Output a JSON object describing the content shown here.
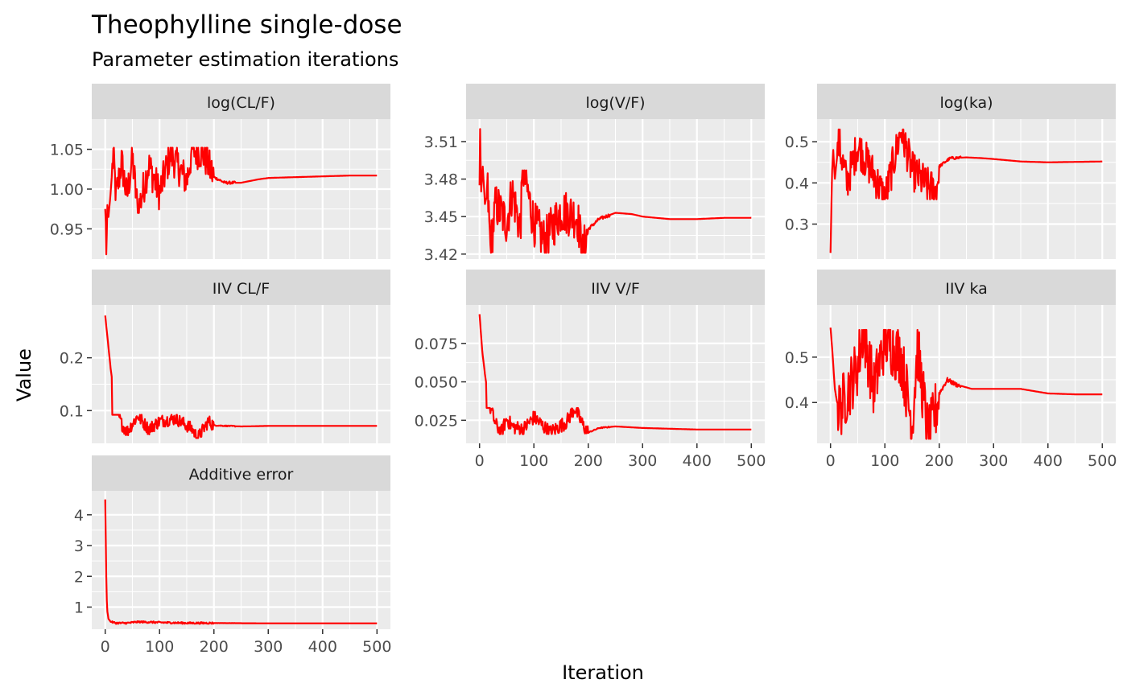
{
  "title": "Theophylline single-dose",
  "subtitle": "Parameter estimation iterations",
  "xlabel": "Iteration",
  "ylabel": "Value",
  "colors": {
    "line": "#ff0000",
    "panel": "#ebebeb",
    "strip": "#d9d9d9",
    "grid": "#ffffff",
    "tick_text": "#4d4d4d",
    "text": "#000000",
    "strip_text": "#1a1a1a"
  },
  "chart_data": {
    "type": "line",
    "layout": "facet-wrap 3 columns, free y scales",
    "xlim": [
      0,
      500
    ],
    "x_ticks": [
      0,
      100,
      200,
      300,
      400,
      500
    ],
    "grid": true,
    "legend": "none",
    "panels": [
      {
        "name": "log(CL/F)",
        "y_ticks": [
          "0.95",
          "1.00",
          "1.05"
        ],
        "ylim": [
          0.912,
          1.088
        ],
        "start": 0.975,
        "burn_in": {
          "end_iter": 200,
          "low": 0.97,
          "high": 1.052,
          "center": 1.012
        },
        "points": [
          [
            0,
            0.975
          ],
          [
            1,
            0.958
          ],
          [
            2,
            0.918
          ],
          [
            3,
            0.945
          ],
          [
            4,
            0.98
          ],
          [
            6,
            0.965
          ],
          [
            10,
            0.995
          ],
          [
            15,
            1.045
          ],
          [
            20,
            0.99
          ],
          [
            30,
            1.035
          ],
          [
            40,
            0.99
          ],
          [
            50,
            1.04
          ],
          [
            60,
            0.97
          ],
          [
            80,
            1.03
          ],
          [
            100,
            0.995
          ],
          [
            120,
            1.045
          ],
          [
            150,
            1.01
          ],
          [
            160,
            1.05
          ],
          [
            180,
            1.045
          ],
          [
            200,
            1.015
          ],
          [
            220,
            1.008
          ],
          [
            250,
            1.008
          ],
          [
            280,
            1.012
          ],
          [
            300,
            1.014
          ],
          [
            350,
            1.015
          ],
          [
            400,
            1.016
          ],
          [
            450,
            1.017
          ],
          [
            500,
            1.017
          ]
        ]
      },
      {
        "name": "log(V/F)",
        "y_ticks": [
          "3.42",
          "3.45",
          "3.48",
          "3.51"
        ],
        "ylim": [
          3.416,
          3.528
        ],
        "start": 3.475,
        "burn_in": {
          "end_iter": 200,
          "low": 3.421,
          "high": 3.487,
          "center": 3.452
        },
        "points": [
          [
            0,
            3.475
          ],
          [
            1,
            3.52
          ],
          [
            3,
            3.47
          ],
          [
            6,
            3.49
          ],
          [
            10,
            3.46
          ],
          [
            15,
            3.47
          ],
          [
            20,
            3.425
          ],
          [
            30,
            3.46
          ],
          [
            50,
            3.445
          ],
          [
            60,
            3.47
          ],
          [
            75,
            3.44
          ],
          [
            80,
            3.488
          ],
          [
            100,
            3.445
          ],
          [
            120,
            3.43
          ],
          [
            150,
            3.455
          ],
          [
            180,
            3.45
          ],
          [
            190,
            3.42
          ],
          [
            200,
            3.44
          ],
          [
            220,
            3.448
          ],
          [
            250,
            3.453
          ],
          [
            280,
            3.452
          ],
          [
            300,
            3.45
          ],
          [
            350,
            3.448
          ],
          [
            400,
            3.448
          ],
          [
            450,
            3.449
          ],
          [
            500,
            3.449
          ]
        ]
      },
      {
        "name": "log(ka)",
        "y_ticks": [
          "0.3",
          "0.4",
          "0.5"
        ],
        "ylim": [
          0.215,
          0.555
        ],
        "start": 0.23,
        "burn_in": {
          "end_iter": 200,
          "low": 0.36,
          "high": 0.53,
          "center": 0.448
        },
        "points": [
          [
            0,
            0.23
          ],
          [
            1,
            0.3
          ],
          [
            3,
            0.43
          ],
          [
            5,
            0.48
          ],
          [
            8,
            0.41
          ],
          [
            15,
            0.5
          ],
          [
            30,
            0.4
          ],
          [
            50,
            0.49
          ],
          [
            80,
            0.42
          ],
          [
            100,
            0.36
          ],
          [
            130,
            0.53
          ],
          [
            150,
            0.43
          ],
          [
            180,
            0.39
          ],
          [
            195,
            0.38
          ],
          [
            200,
            0.44
          ],
          [
            220,
            0.46
          ],
          [
            250,
            0.462
          ],
          [
            280,
            0.46
          ],
          [
            300,
            0.458
          ],
          [
            350,
            0.452
          ],
          [
            400,
            0.45
          ],
          [
            450,
            0.451
          ],
          [
            500,
            0.452
          ]
        ]
      },
      {
        "name": "IIV CL/F",
        "y_ticks": [
          "0.1",
          "0.2"
        ],
        "ylim": [
          0.038,
          0.3
        ],
        "start": 0.28,
        "burn_in": {
          "end_iter": 200,
          "low": 0.048,
          "high": 0.092,
          "center": 0.072
        },
        "points": [
          [
            0,
            0.28
          ],
          [
            5,
            0.23
          ],
          [
            10,
            0.18
          ],
          [
            15,
            0.14
          ],
          [
            20,
            0.11
          ],
          [
            25,
            0.09
          ],
          [
            30,
            0.075
          ],
          [
            40,
            0.06
          ],
          [
            50,
            0.075
          ],
          [
            60,
            0.09
          ],
          [
            80,
            0.065
          ],
          [
            100,
            0.08
          ],
          [
            130,
            0.085
          ],
          [
            160,
            0.065
          ],
          [
            170,
            0.048
          ],
          [
            190,
            0.08
          ],
          [
            200,
            0.072
          ],
          [
            250,
            0.07
          ],
          [
            300,
            0.071
          ],
          [
            400,
            0.071
          ],
          [
            500,
            0.071
          ]
        ]
      },
      {
        "name": "IIV V/F",
        "y_ticks": [
          "0.025",
          "0.050",
          "0.075"
        ],
        "ylim": [
          0.01,
          0.1
        ],
        "start": 0.094,
        "burn_in": {
          "end_iter": 200,
          "low": 0.016,
          "high": 0.033,
          "center": 0.022
        },
        "points": [
          [
            0,
            0.094
          ],
          [
            5,
            0.07
          ],
          [
            10,
            0.055
          ],
          [
            15,
            0.042
          ],
          [
            20,
            0.033
          ],
          [
            30,
            0.022
          ],
          [
            40,
            0.017
          ],
          [
            50,
            0.026
          ],
          [
            60,
            0.021
          ],
          [
            80,
            0.019
          ],
          [
            100,
            0.027
          ],
          [
            130,
            0.017
          ],
          [
            160,
            0.024
          ],
          [
            175,
            0.033
          ],
          [
            190,
            0.022
          ],
          [
            200,
            0.017
          ],
          [
            220,
            0.02
          ],
          [
            250,
            0.021
          ],
          [
            300,
            0.02
          ],
          [
            400,
            0.019
          ],
          [
            500,
            0.019
          ]
        ]
      },
      {
        "name": "IIV ka",
        "y_ticks": [
          "0.4",
          "0.5"
        ],
        "ylim": [
          0.31,
          0.615
        ],
        "start": 0.565,
        "burn_in": {
          "end_iter": 200,
          "low": 0.32,
          "high": 0.56,
          "center": 0.43
        },
        "points": [
          [
            0,
            0.565
          ],
          [
            3,
            0.52
          ],
          [
            8,
            0.43
          ],
          [
            15,
            0.38
          ],
          [
            30,
            0.42
          ],
          [
            50,
            0.48
          ],
          [
            60,
            0.56
          ],
          [
            80,
            0.43
          ],
          [
            100,
            0.54
          ],
          [
            130,
            0.5
          ],
          [
            150,
            0.35
          ],
          [
            160,
            0.52
          ],
          [
            180,
            0.32
          ],
          [
            195,
            0.39
          ],
          [
            200,
            0.42
          ],
          [
            215,
            0.45
          ],
          [
            230,
            0.44
          ],
          [
            260,
            0.43
          ],
          [
            300,
            0.43
          ],
          [
            350,
            0.43
          ],
          [
            400,
            0.42
          ],
          [
            450,
            0.418
          ],
          [
            500,
            0.418
          ]
        ]
      },
      {
        "name": "Additive error",
        "y_ticks": [
          "1",
          "2",
          "3",
          "4"
        ],
        "ylim": [
          0.28,
          4.78
        ],
        "start": 4.5,
        "burn_in": {
          "end_iter": 200,
          "low": 0.44,
          "high": 0.54,
          "center": 0.49
        },
        "points": [
          [
            0,
            4.5
          ],
          [
            1,
            3.2
          ],
          [
            2,
            2.0
          ],
          [
            3,
            1.2
          ],
          [
            4,
            0.85
          ],
          [
            6,
            0.62
          ],
          [
            10,
            0.52
          ],
          [
            20,
            0.48
          ],
          [
            40,
            0.48
          ],
          [
            60,
            0.52
          ],
          [
            100,
            0.5
          ],
          [
            150,
            0.48
          ],
          [
            200,
            0.48
          ],
          [
            300,
            0.47
          ],
          [
            400,
            0.47
          ],
          [
            500,
            0.47
          ]
        ]
      }
    ]
  }
}
